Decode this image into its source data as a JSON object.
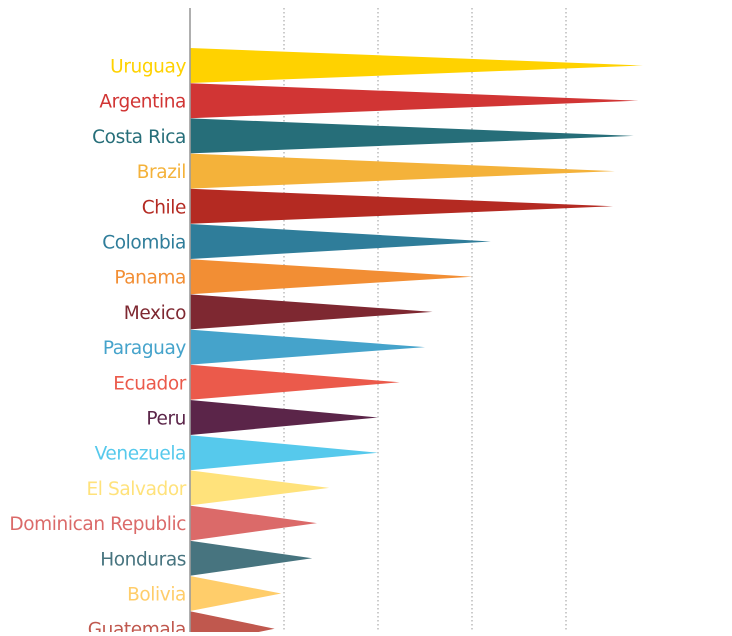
{
  "chart_data": {
    "type": "bar",
    "style": "horizontal tapered (triangle) bars",
    "title": "",
    "xlabel": "",
    "ylabel": "",
    "xlim": [
      0,
      5
    ],
    "grid": "vertical dotted lines at each unit",
    "legend": "none",
    "categories": [
      "Uruguay",
      "Argentina",
      "Costa Rica",
      "Brazil",
      "Chile",
      "Colombia",
      "Panama",
      "Mexico",
      "Paraguay",
      "Ecuador",
      "Peru",
      "Venezuela",
      "El Salvador",
      "Dominican Republic",
      "Honduras",
      "Bolivia",
      "Guatemala"
    ],
    "values": [
      4.82,
      4.77,
      4.72,
      4.52,
      4.5,
      3.2,
      3.0,
      2.58,
      2.5,
      2.23,
      2.0,
      2.0,
      1.48,
      1.35,
      1.3,
      0.97,
      0.9
    ],
    "colors": [
      "#FFD200",
      "#D13534",
      "#266E79",
      "#F4B23A",
      "#B42A22",
      "#2F7D9A",
      "#F28E34",
      "#7E2831",
      "#45A3CB",
      "#EB5A4B",
      "#5B2549",
      "#56C9EC",
      "#FFE27B",
      "#DB6A69",
      "#47747F",
      "#FFCD6A",
      "#C0584E"
    ]
  }
}
